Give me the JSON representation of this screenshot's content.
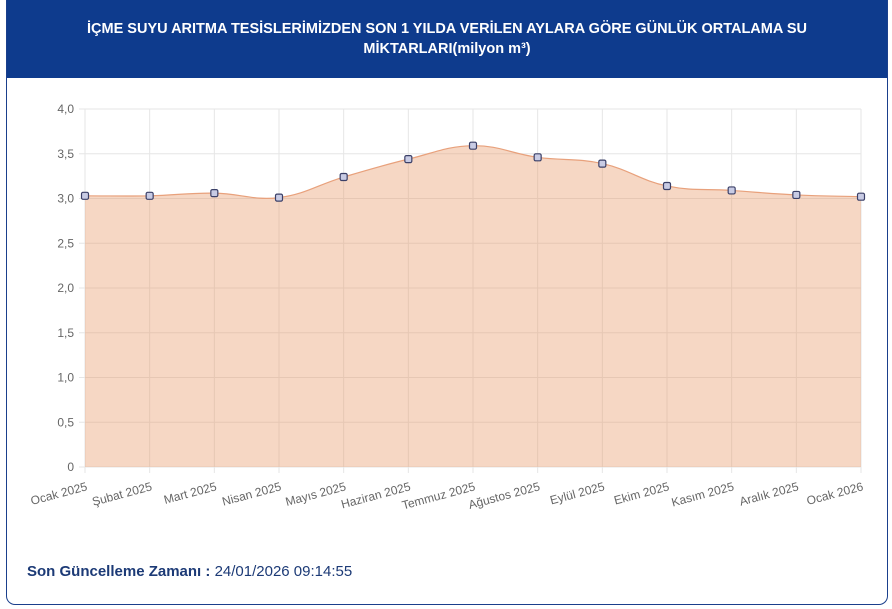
{
  "colors": {
    "header_bg": "#0e3b8d",
    "card_border": "#1a3f8c",
    "title_text": "#ffffff",
    "footer_text": "#1c3a76",
    "grid": "#e6e6e6",
    "tick_text": "#666666",
    "area_fill": "rgba(232, 150, 100, 0.38)",
    "line": "#e8a17c",
    "point_fill": "#c8cbe4",
    "point_stroke": "#3b4068"
  },
  "footer": {
    "label": "Son Güncelleme Zamanı :",
    "value": "24/01/2026 09:14:55"
  },
  "chart_data": {
    "type": "area",
    "title": "İÇME SUYU ARITMA TESİSLERİMİZDEN SON 1 YILDA VERİLEN AYLARA GÖRE GÜNLÜK ORTALAMA SU MİKTARLARI(milyon m³)",
    "categories": [
      "Ocak 2025",
      "Şubat 2025",
      "Mart 2025",
      "Nisan 2025",
      "Mayıs 2025",
      "Haziran 2025",
      "Temmuz 2025",
      "Ağustos 2025",
      "Eylül 2025",
      "Ekim 2025",
      "Kasım 2025",
      "Aralık 2025",
      "Ocak 2026"
    ],
    "series": [
      {
        "values": [
          3.03,
          3.03,
          3.06,
          3.01,
          3.24,
          3.44,
          3.59,
          3.46,
          3.39,
          3.14,
          3.09,
          3.04,
          3.02
        ]
      }
    ],
    "ylim": [
      0,
      4
    ],
    "y_ticks": {
      "values": [
        0,
        0.5,
        1,
        1.5,
        2,
        2.5,
        3,
        3.5,
        4
      ],
      "labels": [
        "0",
        "0,5",
        "1,0",
        "1,5",
        "2,0",
        "2,5",
        "3,0",
        "3,5",
        "4,0"
      ]
    },
    "grid": true,
    "legend": false,
    "smooth": true
  }
}
